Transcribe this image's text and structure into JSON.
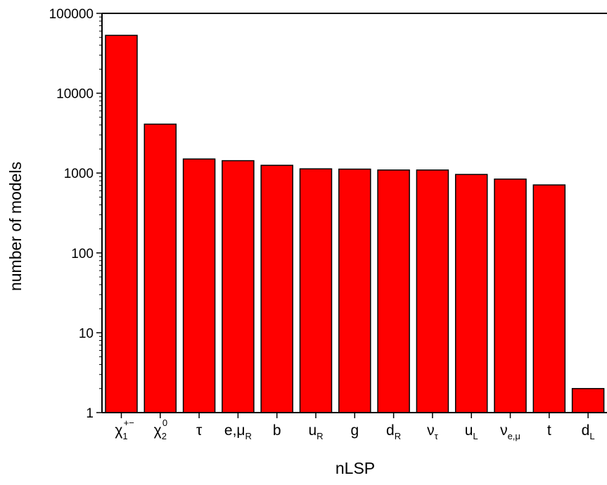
{
  "chart_data": {
    "type": "bar",
    "xlabel": "nLSP",
    "ylabel": "number of models",
    "yscale": "log",
    "ylim": [
      1,
      100000
    ],
    "yticks": [
      "1",
      "10",
      "100",
      "1000",
      "10000",
      "100000"
    ],
    "bar_color": "#ff0000",
    "categories": [
      {
        "main": "χ",
        "sub": "1",
        "sup": "+−"
      },
      {
        "main": "χ",
        "sub": "2",
        "sup": "0"
      },
      {
        "main": "τ",
        "sub": "",
        "sup": ""
      },
      {
        "main": "e,μ",
        "sub": "R",
        "sup": ""
      },
      {
        "main": "b",
        "sub": "",
        "sup": ""
      },
      {
        "main": "u",
        "sub": "R",
        "sup": ""
      },
      {
        "main": "g",
        "sub": "",
        "sup": ""
      },
      {
        "main": "d",
        "sub": "R",
        "sup": ""
      },
      {
        "main": "ν",
        "sub": "τ",
        "sup": ""
      },
      {
        "main": "u",
        "sub": "L",
        "sup": ""
      },
      {
        "main": "ν",
        "sub": "e,μ",
        "sup": ""
      },
      {
        "main": "t",
        "sub": "",
        "sup": ""
      },
      {
        "main": "d",
        "sub": "L",
        "sup": ""
      }
    ],
    "values": [
      53000,
      4100,
      1500,
      1430,
      1250,
      1130,
      1120,
      1090,
      1090,
      960,
      840,
      710,
      2
    ]
  }
}
